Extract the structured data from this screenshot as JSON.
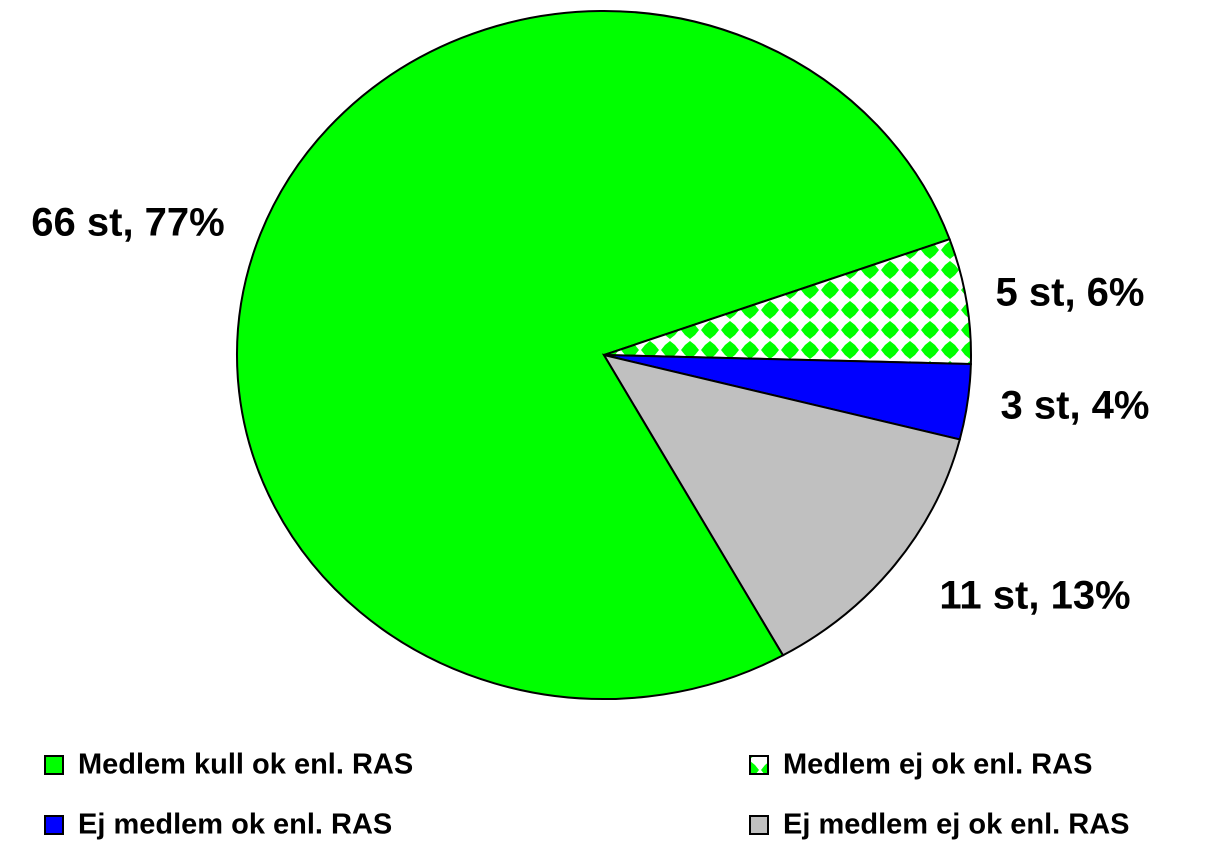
{
  "chart_data": {
    "type": "pie",
    "categories": [
      "Medlem kull ok enl. RAS",
      "Medlem ej ok enl. RAS",
      "Ej medlem ok enl. RAS",
      "Ej medlem ej ok enl. RAS"
    ],
    "values": [
      66,
      5,
      3,
      11
    ],
    "value_labels": [
      "66 st, 77%",
      "5 st, 6%",
      "3 st, 4%",
      "11 st, 13%"
    ],
    "colors": [
      "#00ff00",
      "#00ff00",
      "#0000ff",
      "#c0c0c0"
    ],
    "patterns": [
      "solid",
      "checker",
      "solid",
      "solid"
    ],
    "legend": "bottom"
  }
}
